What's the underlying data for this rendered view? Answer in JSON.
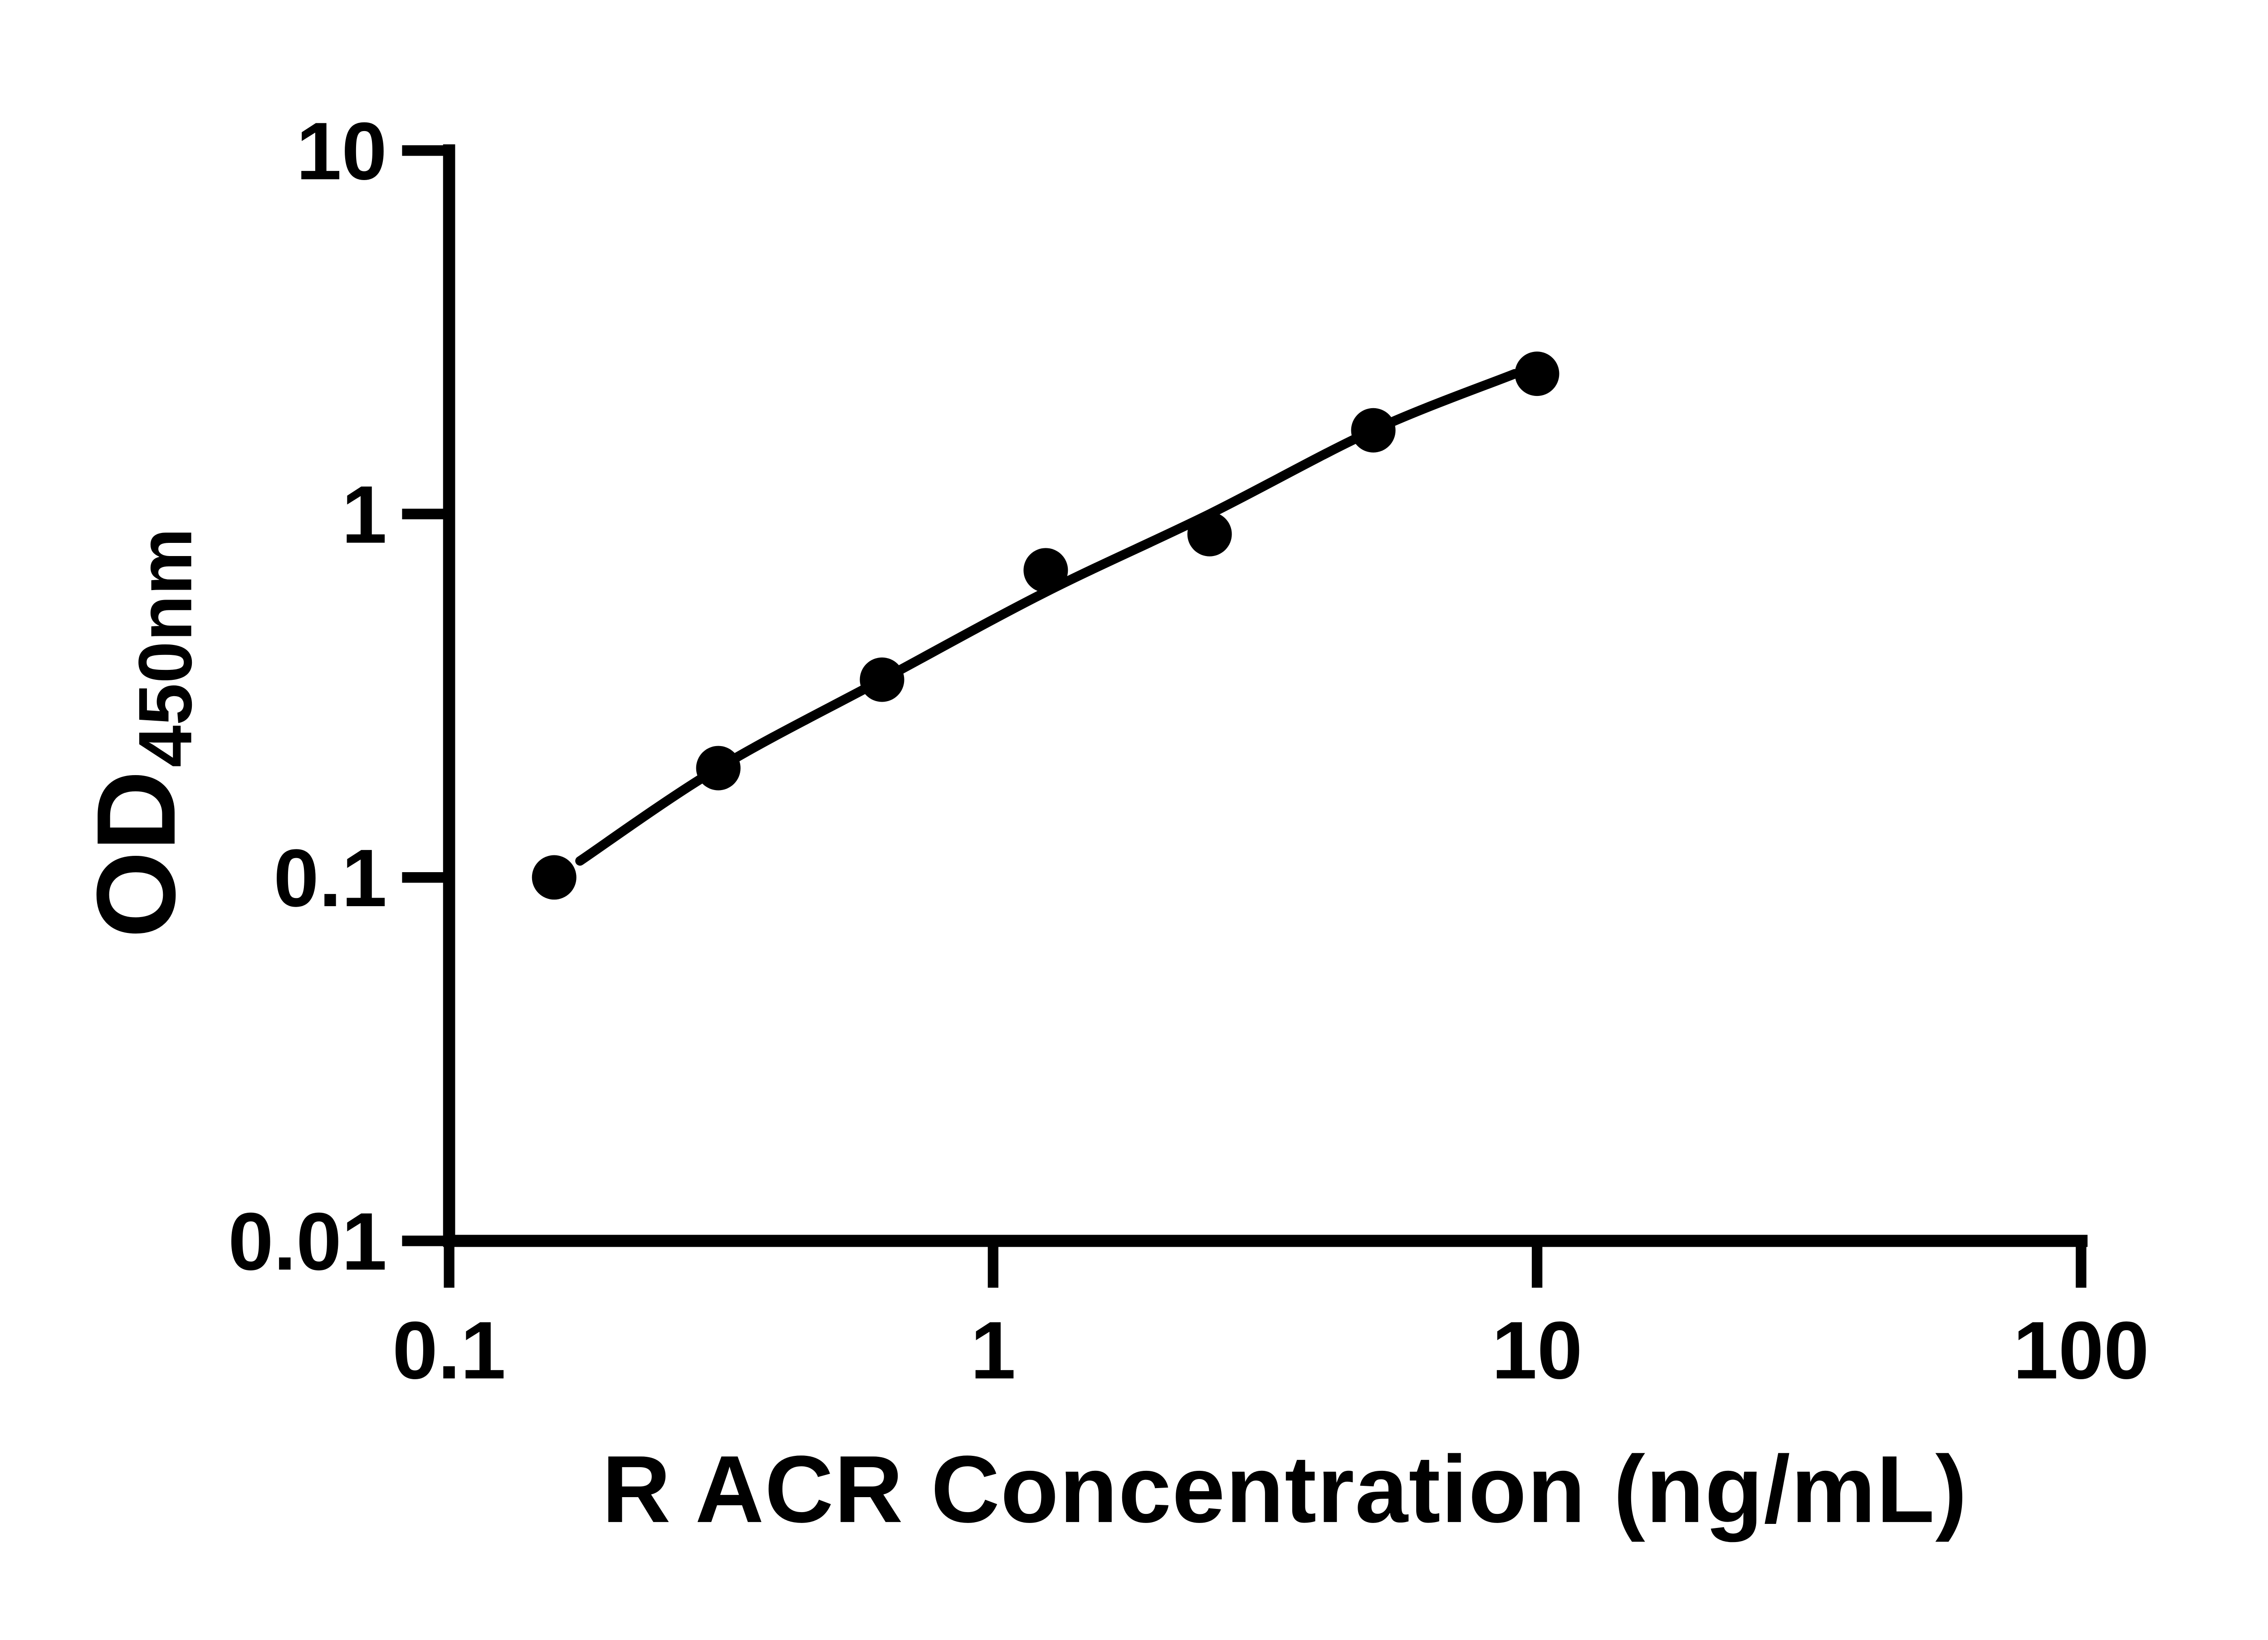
{
  "chart_data": {
    "type": "scatter",
    "title": "",
    "xlabel": "R ACR Concentration (ng/mL)",
    "ylabel_main": "OD",
    "ylabel_sub": "450nm",
    "x_scale": "log",
    "y_scale": "log",
    "xlim": [
      0.1,
      100
    ],
    "ylim": [
      0.01,
      10
    ],
    "x_ticks": [
      0.1,
      1,
      10,
      100
    ],
    "x_tick_labels": [
      "0.1",
      "1",
      "10",
      "100"
    ],
    "y_ticks": [
      10,
      1,
      0.1,
      0.01
    ],
    "y_tick_labels": [
      "10",
      "1",
      "0.1",
      "0.01"
    ],
    "grid": false,
    "legend": null,
    "marker_color": "#000000",
    "line_color": "#000000",
    "axis_color": "#000000",
    "background": "#ffffff",
    "points": [
      {
        "x": 0.156,
        "y": 0.1
      },
      {
        "x": 0.3125,
        "y": 0.2
      },
      {
        "x": 0.625,
        "y": 0.35
      },
      {
        "x": 1.25,
        "y": 0.7
      },
      {
        "x": 2.5,
        "y": 0.88
      },
      {
        "x": 5,
        "y": 1.7
      },
      {
        "x": 10,
        "y": 2.43
      }
    ],
    "fit_curve": [
      {
        "x": 0.174,
        "y": 0.111
      },
      {
        "x": 0.3125,
        "y": 0.2
      },
      {
        "x": 0.625,
        "y": 0.35
      },
      {
        "x": 1.25,
        "y": 0.61
      },
      {
        "x": 2.5,
        "y": 1.0
      },
      {
        "x": 5,
        "y": 1.7
      },
      {
        "x": 9.1,
        "y": 2.43
      }
    ]
  }
}
